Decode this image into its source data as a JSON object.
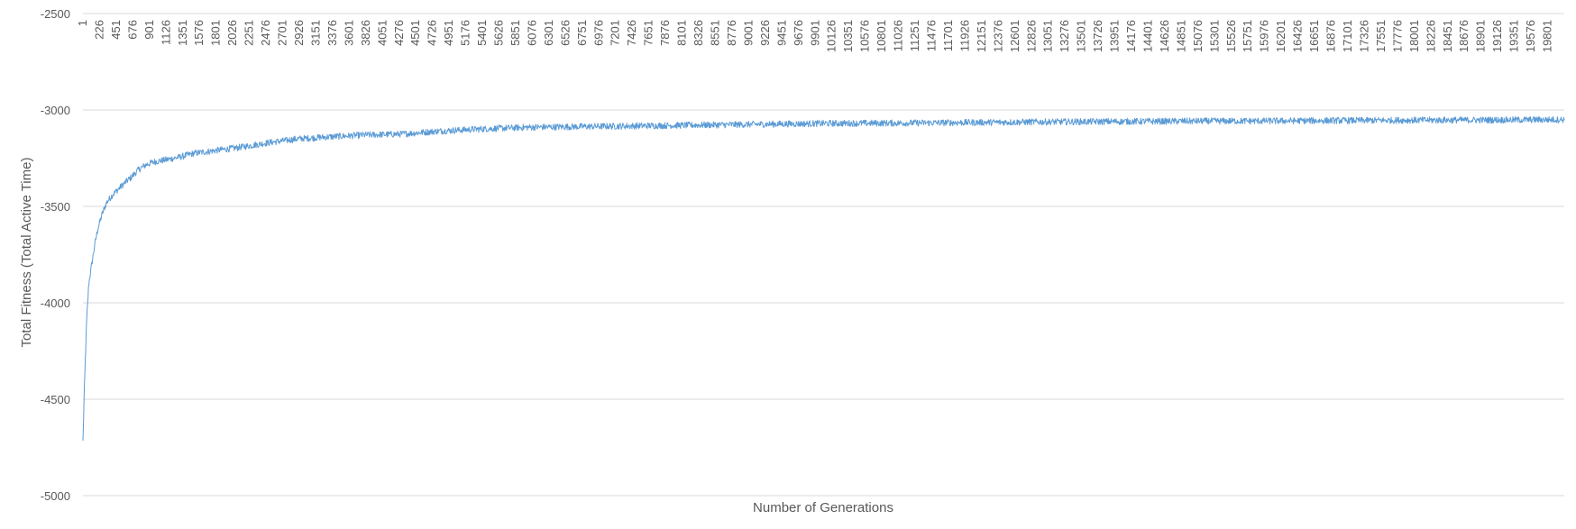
{
  "chart_data": {
    "type": "line",
    "title": "",
    "xlabel": "Number of Generations",
    "ylabel": "Total Fitness (Total Active Time)",
    "ylim": [
      -5000,
      -2500
    ],
    "y_ticks": [
      -2500,
      -3000,
      -3500,
      -4000,
      -4500,
      -5000
    ],
    "x_range": [
      1,
      20000
    ],
    "x_tick_labels": [
      "1",
      "226",
      "451",
      "676",
      "901",
      "1126",
      "1351",
      "1576",
      "1801",
      "2026",
      "2251",
      "2476",
      "2701",
      "2926",
      "3151",
      "3376",
      "3601",
      "3826",
      "4051",
      "4276",
      "4501",
      "4726",
      "4951",
      "5176",
      "5401",
      "5626",
      "5851",
      "6076",
      "6301",
      "6526",
      "6751",
      "6976",
      "7201",
      "7426",
      "7651",
      "7876",
      "8101",
      "8326",
      "8551",
      "8776",
      "9001",
      "9226",
      "9451",
      "9676",
      "9901",
      "10126",
      "10351",
      "10576",
      "10801",
      "11026",
      "11251",
      "11476",
      "11701",
      "11926",
      "12151",
      "12376",
      "12601",
      "12826",
      "13051",
      "13276",
      "13501",
      "13726",
      "13951",
      "14176",
      "14401",
      "14626",
      "14851",
      "15076",
      "15301",
      "15526",
      "15751",
      "15976",
      "16201",
      "16426",
      "16651",
      "16876",
      "17101",
      "17326",
      "17551",
      "17776",
      "18001",
      "18226",
      "18451",
      "18676",
      "18901",
      "19126",
      "19351",
      "19576",
      "19801"
    ],
    "grid": true,
    "legend": "none",
    "series": [
      {
        "color": "#5b9bd5",
        "x": [
          1,
          20,
          50,
          80,
          120,
          160,
          200,
          260,
          320,
          400,
          480,
          560,
          650,
          750,
          850,
          950,
          1100,
          1300,
          1500,
          1800,
          2100,
          2500,
          2900,
          3300,
          3800,
          4300,
          4800,
          5300,
          6000,
          7000,
          8000,
          9000,
          10000,
          11000,
          12000,
          13000,
          14000,
          15000,
          16000,
          17000,
          18000,
          19000,
          20000
        ],
        "y": [
          -4720,
          -4450,
          -4100,
          -3900,
          -3800,
          -3700,
          -3620,
          -3540,
          -3480,
          -3440,
          -3410,
          -3380,
          -3350,
          -3310,
          -3285,
          -3270,
          -3260,
          -3245,
          -3225,
          -3210,
          -3195,
          -3170,
          -3150,
          -3140,
          -3130,
          -3125,
          -3110,
          -3100,
          -3090,
          -3085,
          -3080,
          -3075,
          -3070,
          -3068,
          -3065,
          -3062,
          -3060,
          -3058,
          -3057,
          -3055,
          -3053,
          -3052,
          -3050
        ]
      }
    ]
  }
}
